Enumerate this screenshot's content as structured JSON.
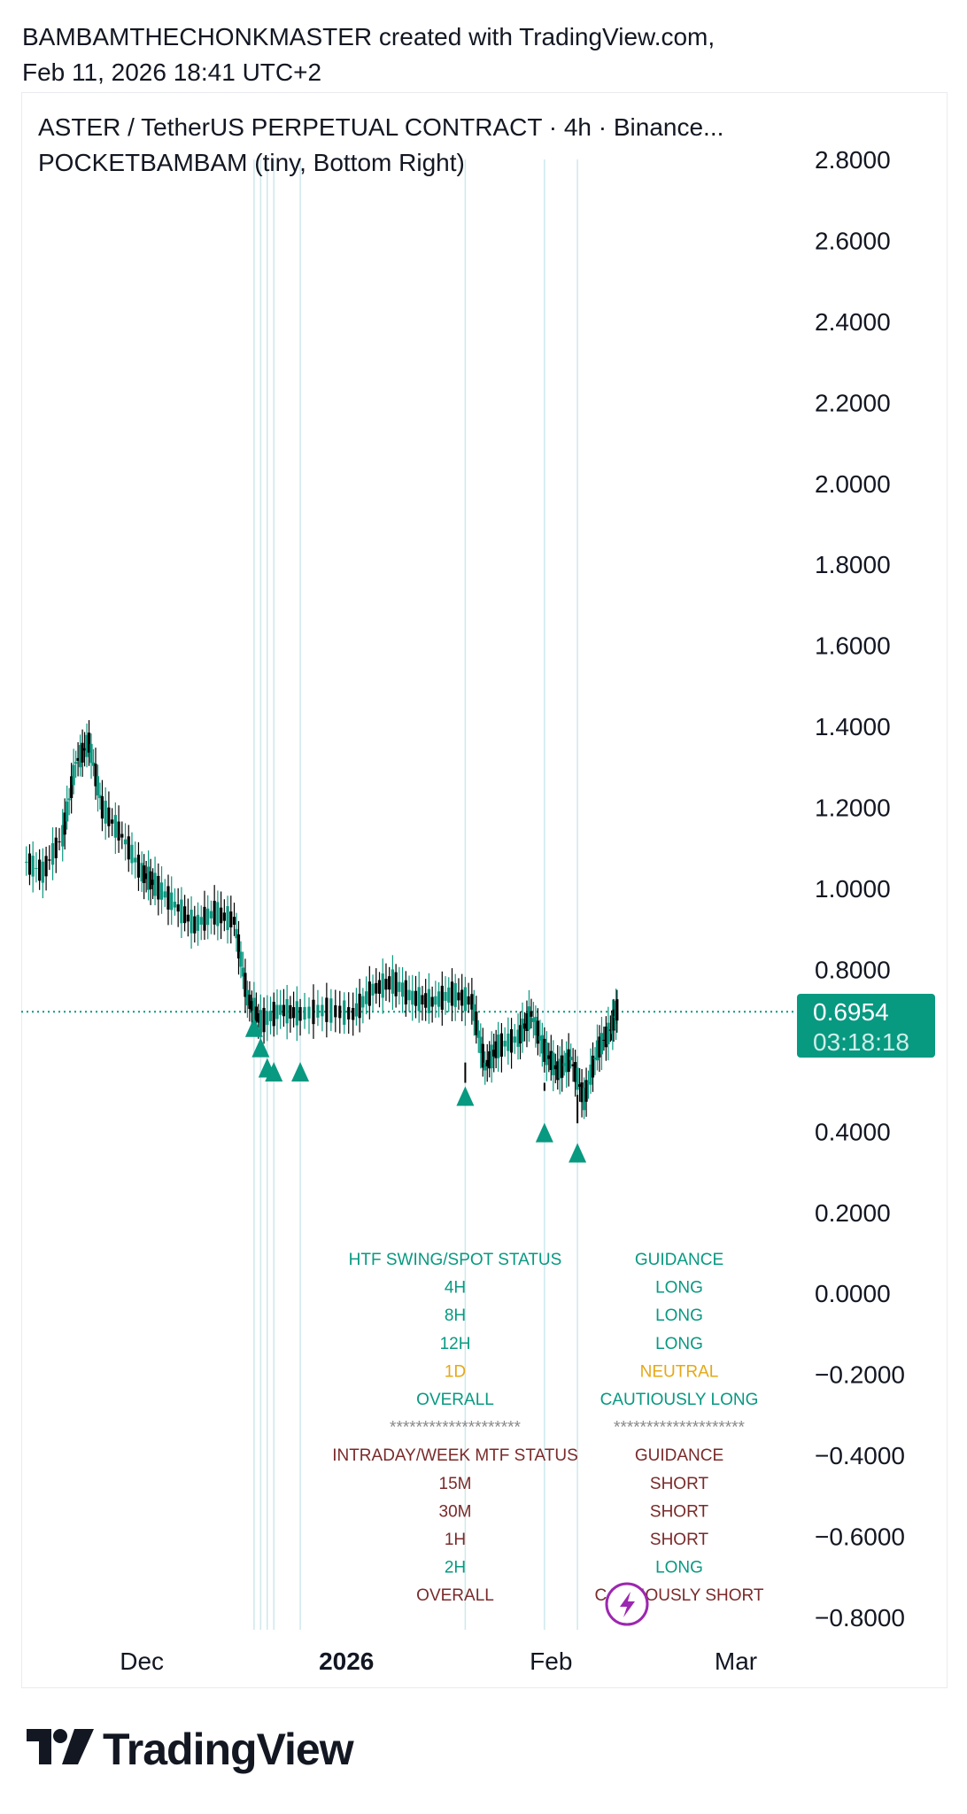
{
  "header": {
    "line1": "BAMBAMTHECHONKMASTER created with TradingView.com,",
    "line2": "Feb 11, 2026 18:41 UTC+2"
  },
  "legend": {
    "symbol_line": "ASTER / TetherUS PERPETUAL CONTRACT · 4h · Binance...",
    "indicator_line": "POCKETBAMBAM (tiny, Bottom Right)"
  },
  "price_label": {
    "price": "0.6954",
    "countdown": "03:18:18"
  },
  "footer": {
    "brand": "TradingView"
  },
  "colors": {
    "up": "#089981",
    "down": "#000000",
    "accent": "#089981",
    "neutral": "#e5a817",
    "short": "#7a2a2a",
    "vline": "#cfe8ec",
    "lightning": "#9c27b0"
  },
  "chart_data": {
    "type": "line",
    "ylim": [
      -0.8,
      2.8
    ],
    "y_ticks": [
      "2.8000",
      "2.6000",
      "2.4000",
      "2.2000",
      "2.0000",
      "1.8000",
      "1.6000",
      "1.4000",
      "1.2000",
      "1.0000",
      "0.8000",
      "0.4000",
      "0.2000",
      "0.0000",
      "−0.2000",
      "−0.4000",
      "−0.6000",
      "−0.8000"
    ],
    "x_ticks": [
      "Dec",
      "2026",
      "Feb",
      "Mar"
    ],
    "last_price": 0.6954,
    "series": [
      {
        "x": [
          "2025-11-13",
          "2025-11-16",
          "2025-11-19",
          "2025-11-21",
          "2025-11-23",
          "2025-11-25",
          "2025-11-28",
          "2025-12-01",
          "2025-12-03",
          "2025-12-06",
          "2025-12-09",
          "2025-12-12",
          "2025-12-15",
          "2025-12-17",
          "2025-12-19",
          "2025-12-22",
          "2025-12-25",
          "2025-12-29",
          "2026-01-02",
          "2026-01-05",
          "2026-01-08",
          "2026-01-11",
          "2026-01-14",
          "2026-01-17",
          "2026-01-20",
          "2026-01-22",
          "2026-01-24",
          "2026-01-27",
          "2026-01-29",
          "2026-01-31",
          "2026-02-02",
          "2026-02-04",
          "2026-02-06",
          "2026-02-08",
          "2026-02-10",
          "2026-02-11"
        ],
        "y": [
          1.07,
          1.04,
          1.13,
          1.31,
          1.36,
          1.2,
          1.13,
          1.04,
          1.01,
          0.96,
          0.91,
          0.94,
          0.92,
          0.73,
          0.67,
          0.7,
          0.69,
          0.7,
          0.69,
          0.75,
          0.77,
          0.73,
          0.72,
          0.74,
          0.72,
          0.56,
          0.61,
          0.63,
          0.69,
          0.6,
          0.55,
          0.58,
          0.48,
          0.6,
          0.65,
          0.7
        ]
      }
    ],
    "vertical_lines": [
      "2025-12-18",
      "2025-12-19",
      "2025-12-20",
      "2025-12-21",
      "2025-12-25",
      "2026-01-19",
      "2026-01-31",
      "2026-02-05"
    ],
    "signals": [
      {
        "type": "buy",
        "x": "2025-12-18",
        "y": 0.69
      },
      {
        "type": "buy",
        "x": "2025-12-19",
        "y": 0.64
      },
      {
        "type": "buy",
        "x": "2025-12-20",
        "y": 0.59
      },
      {
        "type": "buy",
        "x": "2025-12-21",
        "y": 0.58
      },
      {
        "type": "buy",
        "x": "2025-12-25",
        "y": 0.58
      },
      {
        "type": "buy",
        "x": "2026-01-19",
        "y": 0.52
      },
      {
        "type": "buy",
        "x": "2026-01-31",
        "y": 0.43
      },
      {
        "type": "buy",
        "x": "2026-02-05",
        "y": 0.38
      }
    ],
    "status_table": {
      "htf_header": [
        "HTF SWING/SPOT STATUS",
        "GUIDANCE"
      ],
      "htf_rows": [
        {
          "tf": "4H",
          "guidance": "LONG",
          "color": "#089981"
        },
        {
          "tf": "8H",
          "guidance": "LONG",
          "color": "#089981"
        },
        {
          "tf": "12H",
          "guidance": "LONG",
          "color": "#089981"
        },
        {
          "tf": "1D",
          "guidance": "NEUTRAL",
          "color": "#e5a817"
        },
        {
          "tf": "OVERALL",
          "guidance": "CAUTIOUSLY LONG",
          "color": "#089981"
        }
      ],
      "separator": [
        "********************",
        "********************"
      ],
      "mtf_header": [
        "INTRADAY/WEEK MTF STATUS",
        "GUIDANCE"
      ],
      "mtf_rows": [
        {
          "tf": "15M",
          "guidance": "SHORT",
          "color": "#7a2a2a"
        },
        {
          "tf": "30M",
          "guidance": "SHORT",
          "color": "#7a2a2a"
        },
        {
          "tf": "1H",
          "guidance": "SHORT",
          "color": "#7a2a2a"
        },
        {
          "tf": "2H",
          "guidance": "LONG",
          "color": "#089981"
        },
        {
          "tf": "OVERALL",
          "guidance": "CAUTIOUSLY SHORT",
          "color": "#7a2a2a"
        }
      ]
    }
  }
}
